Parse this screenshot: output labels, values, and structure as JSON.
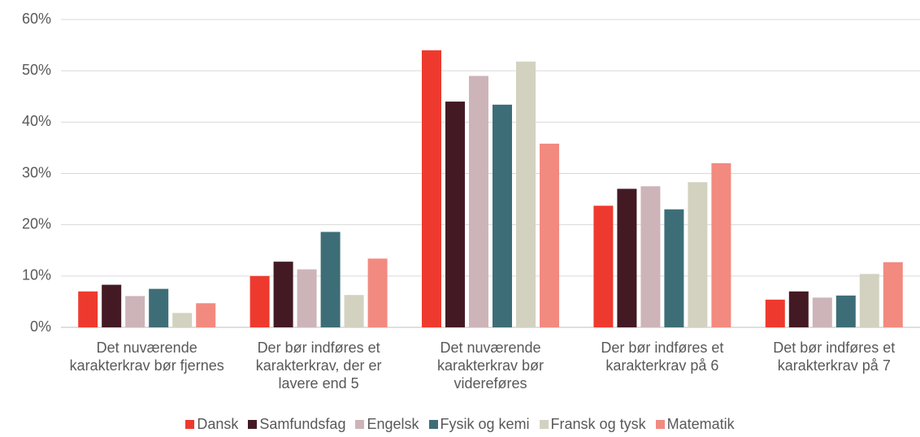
{
  "chart_data": {
    "type": "bar",
    "categories": [
      "Det nuværende karakterkrav bør fjernes",
      "Der bør indføres et karakterkrav, der er lavere end 5",
      "Det nuværende karakterkrav bør videreføres",
      "Der bør indføres et karakterkrav på 6",
      "Det bør indføres et karakterkrav på 7"
    ],
    "series": [
      {
        "name": "Dansk",
        "color": "#ee3a2e",
        "values": [
          7,
          10,
          54,
          23.7,
          5.4
        ]
      },
      {
        "name": "Samfundsfag",
        "color": "#431a24",
        "values": [
          8.3,
          12.8,
          44,
          27,
          7
        ]
      },
      {
        "name": "Engelsk",
        "color": "#cdb4b8",
        "values": [
          6.1,
          11.3,
          49,
          27.5,
          5.8
        ]
      },
      {
        "name": "Fysik og kemi",
        "color": "#3d6e78",
        "values": [
          7.5,
          18.6,
          43.4,
          23,
          6.2
        ]
      },
      {
        "name": "Fransk og tysk",
        "color": "#d3d2c0",
        "values": [
          2.8,
          6.3,
          51.8,
          28.3,
          10.4
        ]
      },
      {
        "name": "Matematik",
        "color": "#f28a80",
        "values": [
          4.7,
          13.4,
          35.8,
          32,
          12.7
        ]
      }
    ],
    "ylim": [
      0,
      60
    ],
    "yticks": [
      {
        "value": 0,
        "label": "0%"
      },
      {
        "value": 10,
        "label": "10%"
      },
      {
        "value": 20,
        "label": "20%"
      },
      {
        "value": 30,
        "label": "30%"
      },
      {
        "value": 40,
        "label": "40%"
      },
      {
        "value": 50,
        "label": "50%"
      },
      {
        "value": 60,
        "label": "60%"
      }
    ],
    "grid": true,
    "legend": "bottom"
  }
}
